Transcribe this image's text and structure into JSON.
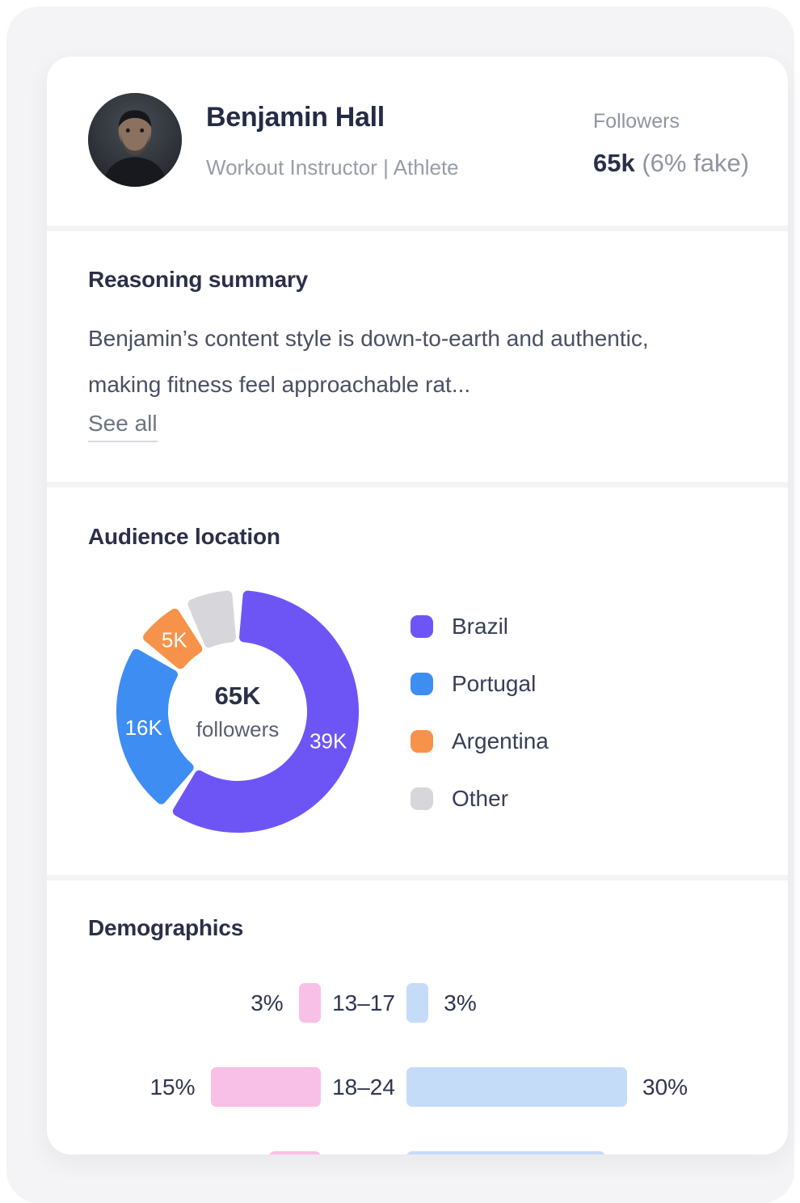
{
  "header": {
    "name": "Benjamin Hall",
    "role": "Workout Instructor | Athlete",
    "followers_label": "Followers",
    "followers_value": "65k",
    "followers_fake_note": "(6% fake)"
  },
  "reasoning": {
    "title": "Reasoning summary",
    "body": "Benjamin’s content style is down-to-earth and authentic, making fitness feel approachable rat...",
    "see_all_label": "See all"
  },
  "audience": {
    "title": "Audience location"
  },
  "demographics": {
    "title": "Demographics"
  },
  "chart_data": [
    {
      "type": "pie",
      "subtype": "donut",
      "title": "Audience location",
      "labels": [
        "Brazil",
        "Portugal",
        "Argentina",
        "Other"
      ],
      "values": [
        39,
        16,
        5,
        5
      ],
      "unit": "K",
      "value_labels": [
        "39K",
        "16K",
        "5K",
        ""
      ],
      "colors": [
        "#6D55F5",
        "#3E8DF3",
        "#F7924A",
        "#D7D6DB"
      ],
      "center_value": "65K",
      "center_label": "followers",
      "legend_position": "right"
    },
    {
      "type": "bar",
      "subtype": "butterfly",
      "title": "Demographics",
      "categories": [
        "13–17",
        "18–24",
        ""
      ],
      "series": [
        {
          "side": "left",
          "color": "#F9C0E7",
          "values": [
            3,
            15,
            7
          ],
          "value_labels": [
            "3%",
            "15%",
            ""
          ]
        },
        {
          "side": "right",
          "color": "#C5DCF8",
          "values": [
            3,
            30,
            27
          ],
          "value_labels": [
            "3%",
            "30%",
            ""
          ]
        }
      ]
    }
  ]
}
